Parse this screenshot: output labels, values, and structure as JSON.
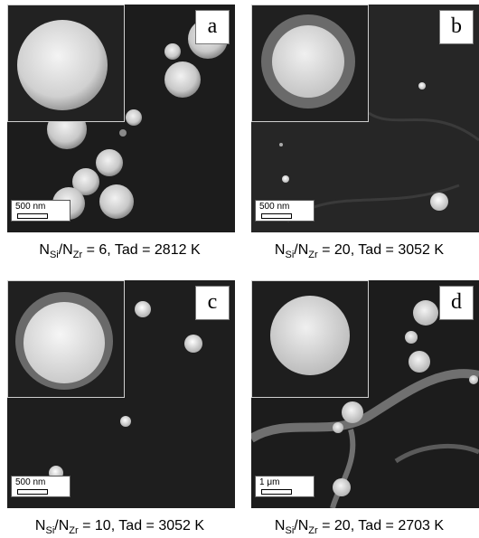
{
  "panels": [
    {
      "letter": "a",
      "scale_label": "500 nm",
      "ratio": "6",
      "tad": "2812 K"
    },
    {
      "letter": "b",
      "scale_label": "500 nm",
      "ratio": "20",
      "tad": "3052 K"
    },
    {
      "letter": "c",
      "scale_label": "500 nm",
      "ratio": "10",
      "tad": "3052 K"
    },
    {
      "letter": "d",
      "scale_label": "1 μm",
      "ratio": "20",
      "tad": "2703 K"
    }
  ],
  "caption_parts": {
    "n": "N",
    "si": "Si",
    "slash": "/",
    "zr": "Zr",
    "eq": " = ",
    "sep": ", Tad = "
  }
}
